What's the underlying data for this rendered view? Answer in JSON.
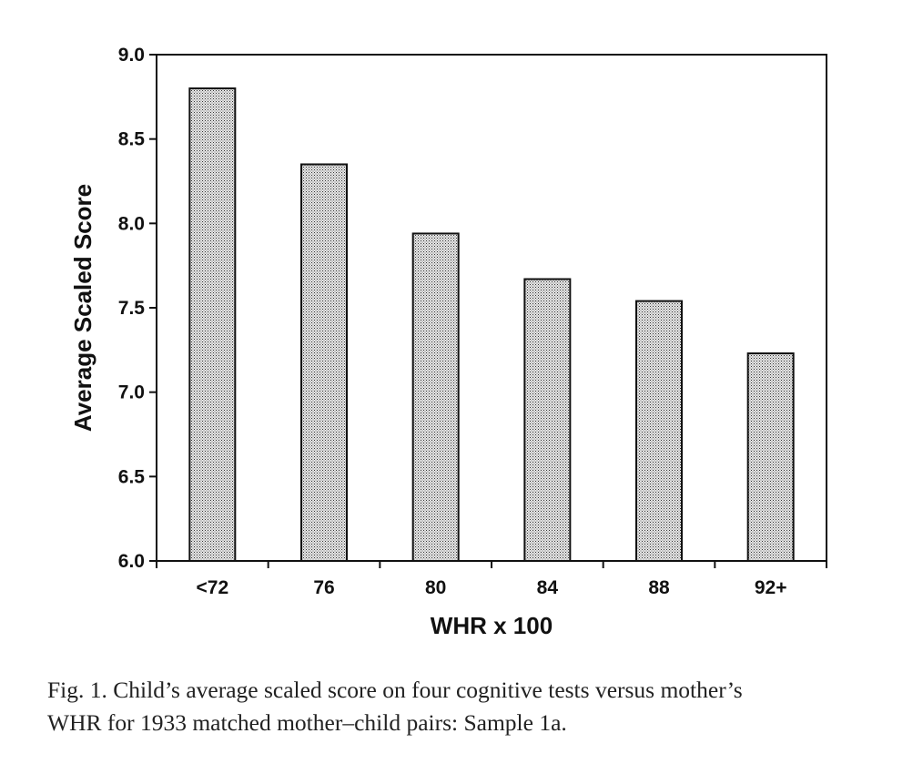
{
  "chart_data": {
    "type": "bar",
    "categories": [
      "<72",
      "76",
      "80",
      "84",
      "88",
      "92+"
    ],
    "values": [
      8.8,
      8.35,
      7.94,
      7.67,
      7.54,
      7.23
    ],
    "xlabel": "WHR x 100",
    "ylabel": "Average Scaled Score",
    "ylim": [
      6.0,
      9.0
    ],
    "yticks": [
      "6.0",
      "6.5",
      "7.0",
      "7.5",
      "8.0",
      "8.5",
      "9.0"
    ],
    "grid": false,
    "bar_fill": "stippled gray"
  },
  "caption": {
    "line1": "Fig. 1. Child’s average scaled score on four cognitive tests versus mother’s",
    "line2": "WHR for 1933 matched mother–child pairs: Sample 1a."
  }
}
